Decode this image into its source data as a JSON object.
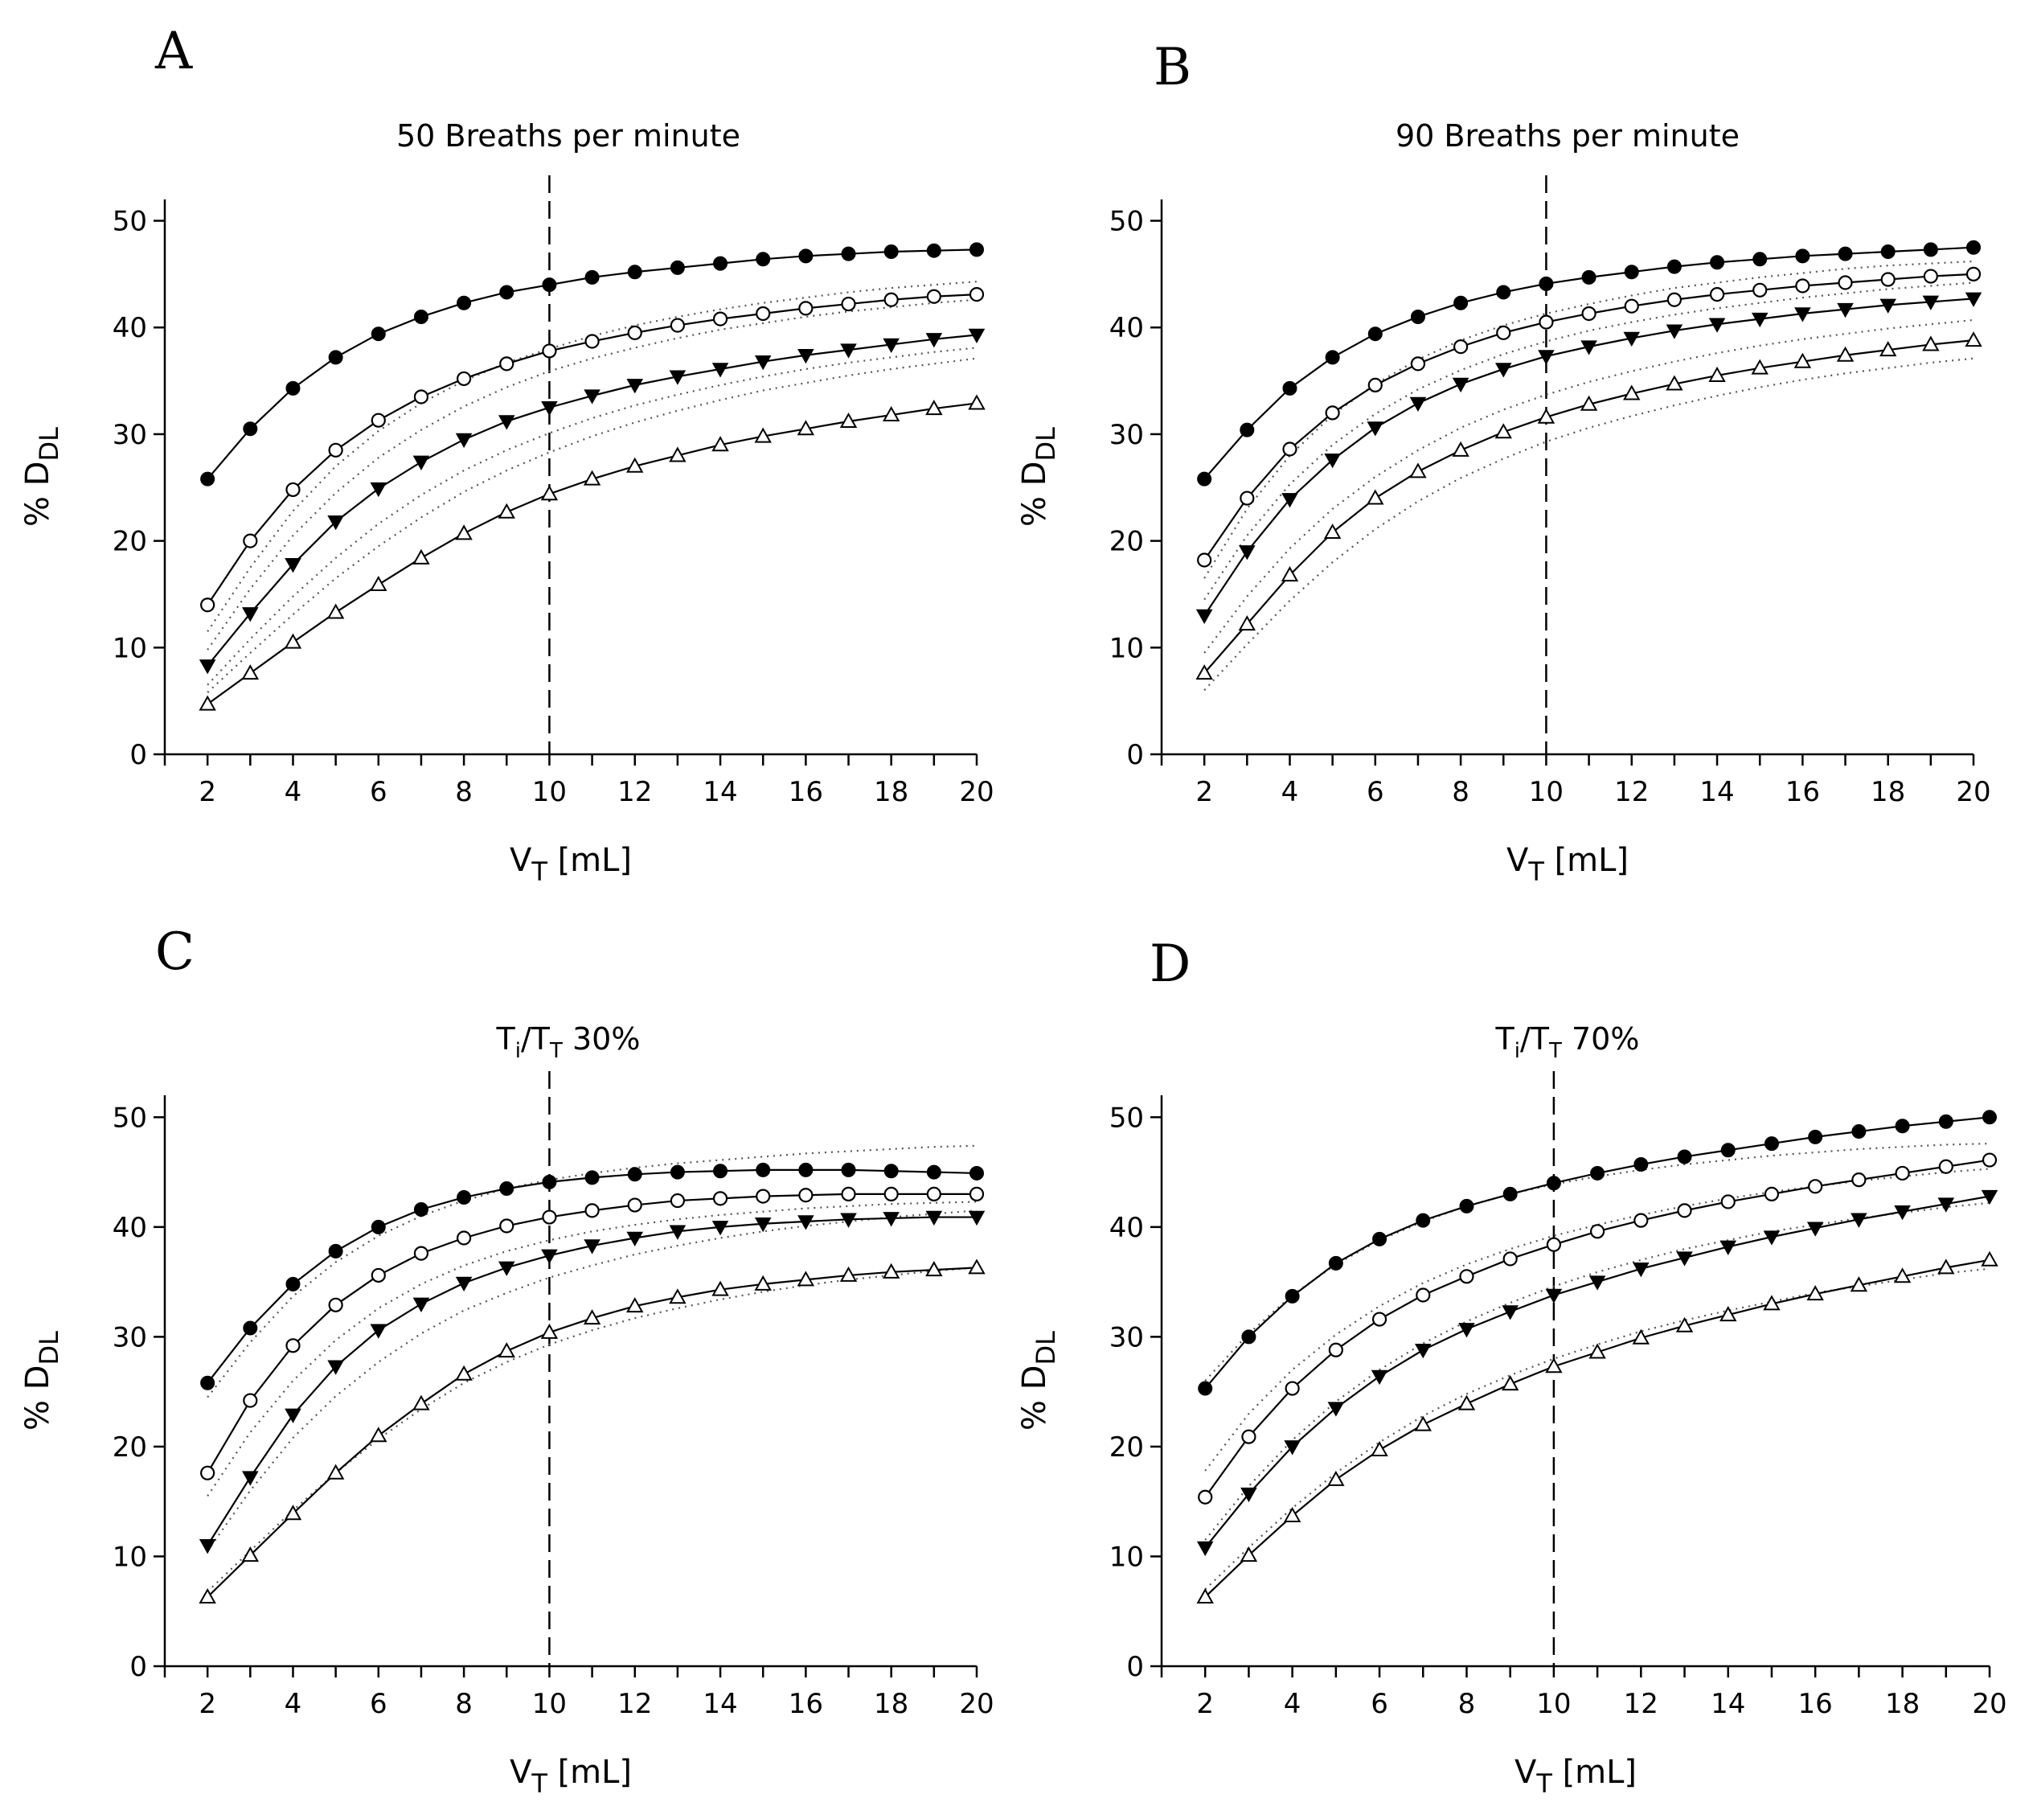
{
  "chart_data": [
    {
      "type": "line",
      "panel_label": "A",
      "title": "50 Breaths per minute",
      "title_main": "50 Breaths per minute",
      "xlabel_main": "V",
      "xlabel_sub": "T",
      "xlabel_rest": " [mL]",
      "ylabel_main": "% D",
      "ylabel_sub": "DL",
      "xlim": [
        1,
        20
      ],
      "ylim": [
        0,
        52
      ],
      "xticks": [
        2,
        4,
        6,
        8,
        10,
        12,
        14,
        16,
        18,
        20
      ],
      "yticks": [
        0,
        10,
        20,
        30,
        40,
        50
      ],
      "reference_x": 10,
      "x": [
        2,
        3,
        4,
        5,
        6,
        7,
        8,
        9,
        10,
        11,
        12,
        13,
        14,
        15,
        16,
        17,
        18,
        19,
        20
      ],
      "series": [
        {
          "name": "filled-circle",
          "marker": "circle-filled",
          "values": [
            25.8,
            30.5,
            34.3,
            37.2,
            39.4,
            41.0,
            42.3,
            43.3,
            44.0,
            44.7,
            45.2,
            45.6,
            46.0,
            46.4,
            46.7,
            46.9,
            47.1,
            47.2,
            47.3
          ]
        },
        {
          "name": "open-circle",
          "marker": "circle-open",
          "values": [
            14.0,
            20.0,
            24.8,
            28.5,
            31.3,
            33.5,
            35.2,
            36.6,
            37.8,
            38.7,
            39.5,
            40.2,
            40.8,
            41.3,
            41.8,
            42.2,
            42.6,
            42.9,
            43.1
          ]
        },
        {
          "name": "filled-triangle-down",
          "marker": "triangle-down-filled",
          "values": [
            8.3,
            13.2,
            17.8,
            21.8,
            24.9,
            27.4,
            29.5,
            31.2,
            32.5,
            33.6,
            34.6,
            35.4,
            36.1,
            36.8,
            37.4,
            37.9,
            38.4,
            38.9,
            39.3
          ]
        },
        {
          "name": "open-triangle-up",
          "marker": "triangle-up-open",
          "values": [
            4.7,
            7.6,
            10.5,
            13.3,
            15.9,
            18.4,
            20.7,
            22.7,
            24.4,
            25.8,
            27.0,
            28.0,
            29.0,
            29.8,
            30.5,
            31.2,
            31.8,
            32.4,
            32.9
          ]
        }
      ],
      "dotted_series": [
        {
          "name": "dotted-1",
          "values": [
            11.5,
            17.5,
            22.8,
            27.0,
            30.3,
            32.9,
            35.0,
            36.7,
            38.0,
            39.2,
            40.2,
            41.0,
            41.7,
            42.3,
            42.8,
            43.3,
            43.7,
            44.0,
            44.3
          ]
        },
        {
          "name": "dotted-2",
          "values": [
            9.8,
            15.5,
            20.5,
            24.5,
            27.8,
            30.4,
            32.6,
            34.4,
            35.9,
            37.1,
            38.1,
            39.0,
            39.8,
            40.4,
            41.0,
            41.5,
            41.9,
            42.3,
            42.6
          ]
        },
        {
          "name": "dotted-3",
          "values": [
            6.5,
            10.8,
            14.8,
            18.4,
            21.6,
            24.3,
            26.6,
            28.5,
            30.1,
            31.5,
            32.7,
            33.7,
            34.6,
            35.4,
            36.1,
            36.7,
            37.2,
            37.7,
            38.1
          ]
        },
        {
          "name": "dotted-4",
          "values": [
            5.8,
            9.5,
            13.1,
            16.5,
            19.5,
            22.2,
            24.6,
            26.6,
            28.3,
            29.8,
            31.1,
            32.2,
            33.2,
            34.1,
            34.8,
            35.5,
            36.1,
            36.6,
            37.1
          ]
        }
      ]
    },
    {
      "type": "line",
      "panel_label": "B",
      "title": "90 Breaths per minute",
      "title_main": "90 Breaths per minute",
      "xlabel_main": "V",
      "xlabel_sub": "T",
      "xlabel_rest": " [mL]",
      "ylabel_main": "% D",
      "ylabel_sub": "DL",
      "xlim": [
        1,
        20
      ],
      "ylim": [
        0,
        52
      ],
      "xticks": [
        2,
        4,
        6,
        8,
        10,
        12,
        14,
        16,
        18,
        20
      ],
      "yticks": [
        0,
        10,
        20,
        30,
        40,
        50
      ],
      "reference_x": 10,
      "x": [
        2,
        3,
        4,
        5,
        6,
        7,
        8,
        9,
        10,
        11,
        12,
        13,
        14,
        15,
        16,
        17,
        18,
        19,
        20
      ],
      "series": [
        {
          "name": "filled-circle",
          "marker": "circle-filled",
          "values": [
            25.8,
            30.4,
            34.3,
            37.2,
            39.4,
            41.0,
            42.3,
            43.3,
            44.1,
            44.7,
            45.2,
            45.7,
            46.1,
            46.4,
            46.7,
            46.9,
            47.1,
            47.3,
            47.5
          ]
        },
        {
          "name": "open-circle",
          "marker": "circle-open",
          "values": [
            18.2,
            24.0,
            28.6,
            32.0,
            34.6,
            36.6,
            38.2,
            39.5,
            40.5,
            41.3,
            42.0,
            42.6,
            43.1,
            43.5,
            43.9,
            44.2,
            44.5,
            44.8,
            45.0
          ]
        },
        {
          "name": "filled-triangle-down",
          "marker": "triangle-down-filled",
          "values": [
            13.0,
            19.0,
            23.9,
            27.6,
            30.6,
            32.9,
            34.7,
            36.1,
            37.3,
            38.2,
            39.0,
            39.7,
            40.3,
            40.8,
            41.3,
            41.7,
            42.1,
            42.4,
            42.7
          ]
        },
        {
          "name": "open-triangle-up",
          "marker": "triangle-up-open",
          "values": [
            7.6,
            12.2,
            16.8,
            20.8,
            24.0,
            26.5,
            28.5,
            30.2,
            31.6,
            32.8,
            33.8,
            34.7,
            35.5,
            36.2,
            36.8,
            37.4,
            37.9,
            38.4,
            38.8
          ]
        }
      ],
      "dotted_series": [
        {
          "name": "dotted-1",
          "values": [
            16.5,
            23.0,
            28.0,
            31.8,
            34.7,
            37.0,
            38.8,
            40.2,
            41.3,
            42.2,
            43.0,
            43.7,
            44.2,
            44.7,
            45.1,
            45.5,
            45.8,
            46.0,
            46.2
          ]
        },
        {
          "name": "dotted-2",
          "values": [
            14.5,
            20.5,
            25.3,
            29.0,
            31.9,
            34.2,
            36.0,
            37.5,
            38.7,
            39.7,
            40.5,
            41.2,
            41.8,
            42.3,
            42.8,
            43.2,
            43.6,
            43.9,
            44.2
          ]
        },
        {
          "name": "dotted-3",
          "values": [
            9.5,
            14.8,
            19.3,
            23.0,
            26.0,
            28.5,
            30.6,
            32.3,
            33.7,
            34.9,
            35.9,
            36.8,
            37.6,
            38.3,
            38.9,
            39.4,
            39.9,
            40.3,
            40.7
          ]
        },
        {
          "name": "dotted-4",
          "values": [
            6.0,
            10.3,
            14.4,
            18.0,
            21.1,
            23.7,
            25.9,
            27.7,
            29.3,
            30.6,
            31.7,
            32.7,
            33.6,
            34.4,
            35.1,
            35.7,
            36.2,
            36.7,
            37.1
          ]
        }
      ]
    },
    {
      "type": "line",
      "panel_label": "C",
      "title": "Ti/TT 30%",
      "title_main": "T",
      "title_sub1": "i",
      "title_mid": "/T",
      "title_sub2": "T",
      "title_rest": " 30%",
      "xlabel_main": "V",
      "xlabel_sub": "T",
      "xlabel_rest": " [mL]",
      "ylabel_main": "% D",
      "ylabel_sub": "DL",
      "xlim": [
        1,
        20
      ],
      "ylim": [
        0,
        52
      ],
      "xticks": [
        2,
        4,
        6,
        8,
        10,
        12,
        14,
        16,
        18,
        20
      ],
      "yticks": [
        0,
        10,
        20,
        30,
        40,
        50
      ],
      "reference_x": 10,
      "x": [
        2,
        3,
        4,
        5,
        6,
        7,
        8,
        9,
        10,
        11,
        12,
        13,
        14,
        15,
        16,
        17,
        18,
        19,
        20
      ],
      "series": [
        {
          "name": "filled-circle",
          "marker": "circle-filled",
          "values": [
            25.8,
            30.8,
            34.8,
            37.8,
            40.0,
            41.6,
            42.7,
            43.5,
            44.1,
            44.5,
            44.8,
            45.0,
            45.1,
            45.2,
            45.2,
            45.2,
            45.1,
            45.0,
            44.9
          ]
        },
        {
          "name": "open-circle",
          "marker": "circle-open",
          "values": [
            17.6,
            24.2,
            29.2,
            32.9,
            35.6,
            37.6,
            39.0,
            40.1,
            40.9,
            41.5,
            42.0,
            42.4,
            42.6,
            42.8,
            42.9,
            43.0,
            43.0,
            43.0,
            43.0
          ]
        },
        {
          "name": "filled-triangle-down",
          "marker": "triangle-down-filled",
          "values": [
            11.0,
            17.2,
            22.9,
            27.3,
            30.6,
            33.0,
            34.9,
            36.3,
            37.4,
            38.3,
            39.0,
            39.6,
            40.0,
            40.3,
            40.5,
            40.7,
            40.8,
            40.9,
            40.9
          ]
        },
        {
          "name": "open-triangle-up",
          "marker": "triangle-up-open",
          "values": [
            6.3,
            10.1,
            13.9,
            17.6,
            21.0,
            23.9,
            26.6,
            28.7,
            30.4,
            31.7,
            32.8,
            33.6,
            34.3,
            34.8,
            35.2,
            35.6,
            35.9,
            36.1,
            36.3
          ]
        }
      ],
      "dotted_series": [
        {
          "name": "dotted-1",
          "values": [
            24.5,
            29.5,
            33.7,
            36.8,
            39.2,
            41.0,
            42.4,
            43.5,
            44.3,
            44.9,
            45.4,
            45.8,
            46.1,
            46.4,
            46.7,
            46.9,
            47.1,
            47.3,
            47.4
          ]
        },
        {
          "name": "dotted-2",
          "values": [
            15.5,
            21.3,
            26.0,
            29.7,
            32.6,
            34.8,
            36.5,
            37.8,
            38.8,
            39.6,
            40.2,
            40.7,
            41.1,
            41.4,
            41.7,
            41.9,
            42.1,
            42.2,
            42.3
          ]
        },
        {
          "name": "dotted-3",
          "values": [
            10.5,
            16.0,
            20.8,
            24.6,
            27.7,
            30.3,
            32.4,
            34.0,
            35.4,
            36.5,
            37.5,
            38.3,
            39.0,
            39.6,
            40.1,
            40.5,
            40.9,
            41.2,
            41.5
          ]
        },
        {
          "name": "dotted-4",
          "values": [
            6.8,
            10.5,
            14.2,
            17.6,
            20.7,
            23.4,
            25.8,
            27.7,
            29.3,
            30.6,
            31.7,
            32.6,
            33.4,
            34.1,
            34.7,
            35.2,
            35.6,
            36.0,
            36.3
          ]
        }
      ]
    },
    {
      "type": "line",
      "panel_label": "D",
      "title": "Ti/TT 70%",
      "title_main": "T",
      "title_sub1": "i",
      "title_mid": "/T",
      "title_sub2": "T",
      "title_rest": " 70%",
      "xlabel_main": "V",
      "xlabel_sub": "T",
      "xlabel_rest": " [mL]",
      "ylabel_main": "% D",
      "ylabel_sub": "DL",
      "xlim": [
        1,
        20
      ],
      "ylim": [
        0,
        52
      ],
      "xticks": [
        2,
        4,
        6,
        8,
        10,
        12,
        14,
        16,
        18,
        20
      ],
      "yticks": [
        0,
        10,
        20,
        30,
        40,
        50
      ],
      "reference_x": 10,
      "x": [
        2,
        3,
        4,
        5,
        6,
        7,
        8,
        9,
        10,
        11,
        12,
        13,
        14,
        15,
        16,
        17,
        18,
        19,
        20
      ],
      "series": [
        {
          "name": "filled-circle",
          "marker": "circle-filled",
          "values": [
            25.3,
            30.0,
            33.7,
            36.7,
            38.9,
            40.6,
            41.9,
            43.0,
            44.0,
            44.9,
            45.7,
            46.4,
            47.0,
            47.6,
            48.2,
            48.7,
            49.2,
            49.6,
            50.0
          ]
        },
        {
          "name": "open-circle",
          "marker": "circle-open",
          "values": [
            15.4,
            20.9,
            25.3,
            28.8,
            31.6,
            33.8,
            35.5,
            37.1,
            38.4,
            39.6,
            40.6,
            41.5,
            42.3,
            43.0,
            43.7,
            44.3,
            44.9,
            45.5,
            46.1
          ]
        },
        {
          "name": "filled-triangle-down",
          "marker": "triangle-down-filled",
          "values": [
            10.8,
            15.7,
            20.0,
            23.5,
            26.4,
            28.8,
            30.7,
            32.3,
            33.8,
            35.0,
            36.2,
            37.2,
            38.2,
            39.1,
            39.9,
            40.7,
            41.4,
            42.1,
            42.8
          ]
        },
        {
          "name": "open-triangle-up",
          "marker": "triangle-up-open",
          "values": [
            6.3,
            10.1,
            13.7,
            17.0,
            19.7,
            22.0,
            23.9,
            25.7,
            27.3,
            28.6,
            29.9,
            31.0,
            32.0,
            33.0,
            33.9,
            34.7,
            35.5,
            36.3,
            37.0
          ]
        }
      ],
      "dotted_series": [
        {
          "name": "dotted-1",
          "values": [
            26.0,
            30.3,
            33.8,
            36.6,
            38.8,
            40.5,
            41.9,
            43.0,
            43.9,
            44.6,
            45.2,
            45.7,
            46.1,
            46.5,
            46.8,
            47.1,
            47.3,
            47.5,
            47.6
          ]
        },
        {
          "name": "dotted-2",
          "values": [
            17.8,
            23.0,
            27.0,
            30.2,
            32.8,
            34.9,
            36.6,
            38.0,
            39.2,
            40.2,
            41.1,
            41.9,
            42.6,
            43.2,
            43.7,
            44.2,
            44.6,
            45.0,
            45.3
          ]
        },
        {
          "name": "dotted-3",
          "values": [
            11.5,
            16.4,
            20.6,
            24.1,
            27.0,
            29.4,
            31.4,
            33.1,
            34.6,
            35.9,
            37.0,
            38.0,
            38.8,
            39.6,
            40.2,
            40.8,
            41.3,
            41.8,
            42.2
          ]
        },
        {
          "name": "dotted-4",
          "values": [
            7.0,
            10.8,
            14.4,
            17.6,
            20.4,
            22.8,
            24.8,
            26.5,
            28.0,
            29.3,
            30.5,
            31.5,
            32.4,
            33.2,
            34.0,
            34.6,
            35.2,
            35.8,
            36.2
          ]
        }
      ]
    }
  ]
}
